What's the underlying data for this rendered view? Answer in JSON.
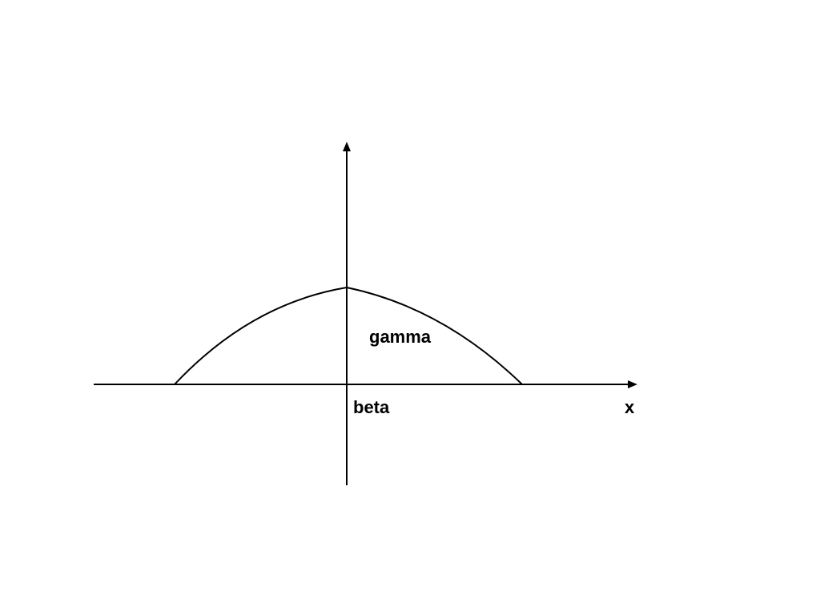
{
  "diagram": {
    "labels": {
      "curve": "gamma",
      "origin": "beta",
      "x_axis": "x"
    },
    "colors": {
      "background": "#ffffff",
      "stroke": "#000000"
    }
  }
}
